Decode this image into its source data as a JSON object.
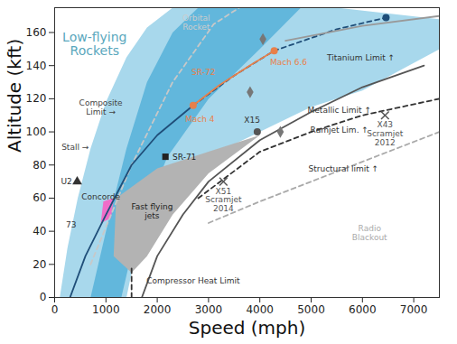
{
  "chart_data": {
    "type": "line",
    "xlabel": "Speed (mph)",
    "ylabel": "Altitude (kft)",
    "xlim": [
      0,
      7500
    ],
    "xticks": [
      0,
      1000,
      2000,
      3000,
      4000,
      5000,
      6000,
      7000
    ],
    "ylim": [
      0,
      175
    ],
    "yticks": [
      0,
      20,
      40,
      60,
      80,
      100,
      120,
      140,
      160
    ],
    "grid": false,
    "areas": [
      {
        "color": "#a8d8ec",
        "x": [
          100,
          250,
          450,
          700,
          1000,
          1400,
          1800,
          2300,
          5500,
          7500,
          7500,
          6000,
          5000,
          4000,
          3000,
          2300,
          1800,
          1500,
          1400
        ],
        "y": [
          0,
          30,
          60,
          90,
          118,
          145,
          163,
          175,
          175,
          168,
          150,
          125,
          115,
          100,
          85,
          65,
          40,
          15,
          0
        ]
      },
      {
        "color": "#62b7dc",
        "x": [
          700,
          1000,
          1400,
          1800,
          2300,
          2800,
          4800,
          4000,
          3000,
          2200,
          1600,
          1300
        ],
        "y": [
          0,
          40,
          90,
          130,
          160,
          175,
          175,
          150,
          120,
          85,
          40,
          0
        ]
      },
      {
        "color": "#b3b3b3",
        "x": [
          1150,
          1200,
          2000,
          3000,
          4000,
          3000,
          2300,
          1800,
          1500
        ],
        "y": [
          25,
          60,
          78,
          88,
          98,
          75,
          50,
          25,
          15
        ]
      },
      {
        "color": "#f06ec8",
        "x": [
          900,
          1100,
          1150,
          950
        ],
        "y": [
          45,
          48,
          60,
          58
        ]
      }
    ],
    "lines": [
      {
        "color": "#c8c8c8",
        "line_style": "dashed",
        "x": [
          700,
          1500,
          2300,
          3100,
          3600
        ],
        "y": [
          20,
          80,
          130,
          165,
          175
        ]
      },
      {
        "color": "#1f4e79",
        "line_style": "solid",
        "x": [
          300,
          600,
          1000,
          1500,
          2000,
          2700
        ],
        "y": [
          0,
          25,
          50,
          80,
          98,
          116
        ]
      },
      {
        "color": "#1f4e79",
        "line_style": "dashed",
        "x": [
          2700,
          3500,
          4280,
          5500,
          6460
        ],
        "y": [
          116,
          134,
          149,
          162,
          169
        ]
      },
      {
        "color": "#e8804a",
        "line_style": "solid",
        "x": [
          2700,
          3200,
          3800,
          4280
        ],
        "y": [
          116,
          128,
          140,
          149
        ]
      },
      {
        "color": "#555555",
        "line_style": "solid",
        "x": [
          1700,
          2000,
          2500,
          3000,
          4000,
          5000,
          6000,
          7200
        ],
        "y": [
          0,
          25,
          50,
          70,
          95,
          112,
          127,
          140
        ]
      },
      {
        "color": "#333333",
        "line_style": "dashed",
        "x": [
          2800,
          4000,
          5000,
          6000,
          7500
        ],
        "y": [
          60,
          88,
          100,
          110,
          120
        ]
      },
      {
        "color": "#aaaaaa",
        "line_style": "dashed",
        "x": [
          3000,
          4000,
          5000,
          6000,
          7500
        ],
        "y": [
          45,
          58,
          70,
          82,
          100
        ]
      },
      {
        "color": "#999999",
        "line_style": "solid",
        "x": [
          4500,
          6000,
          7500
        ],
        "y": [
          155,
          164,
          170
        ]
      },
      {
        "color": "#333333",
        "line_style": "dashed",
        "x": [
          1500,
          1500
        ],
        "y": [
          0,
          18
        ]
      }
    ],
    "points": [
      {
        "x": 2160,
        "y": 85,
        "marker": "square",
        "color": "#222222"
      },
      {
        "x": 440,
        "y": 70,
        "marker": "triangle",
        "color": "#333333"
      },
      {
        "x": 4060,
        "y": 156,
        "marker": "diamond",
        "color": "#777777"
      },
      {
        "x": 3810,
        "y": 124,
        "marker": "diamond",
        "color": "#777777"
      },
      {
        "x": 4400,
        "y": 100,
        "marker": "diamond",
        "color": "#777777"
      },
      {
        "x": 3950,
        "y": 100,
        "marker": "circle",
        "color": "#555555"
      },
      {
        "x": 6440,
        "y": 110,
        "marker": "times",
        "color": "#555555"
      },
      {
        "x": 3290,
        "y": 70,
        "marker": "times",
        "color": "#555555"
      },
      {
        "x": 6460,
        "y": 169,
        "marker": "circle",
        "color": "#1f4e79"
      },
      {
        "x": 2700,
        "y": 116,
        "marker": "circle",
        "color": "#e8804a"
      },
      {
        "x": 4280,
        "y": 149,
        "marker": "circle",
        "color": "#e8804a"
      }
    ],
    "annotations": [
      {
        "text": "Low-flying\nRockets",
        "x": 780,
        "y": 153,
        "color": "#5aa7bd"
      },
      {
        "text": "Orbital\nRocket",
        "x": 2760,
        "y": 166,
        "color": "#cccccc"
      },
      {
        "text": "Titanium Limit ↑",
        "x": 5970,
        "y": 145,
        "color": "#333333"
      },
      {
        "text": "Metallic Limit ↑",
        "x": 5550,
        "y": 113,
        "color": "#333333"
      },
      {
        "text": "Ramjet Lim. ↑",
        "x": 5550,
        "y": 101,
        "color": "#333333"
      },
      {
        "text": "Structural limit ↑",
        "x": 5630,
        "y": 78,
        "color": "#333333"
      },
      {
        "text": "Radio\nBlackout",
        "x": 6140,
        "y": 39,
        "color": "#aaaaaa"
      },
      {
        "text": "Composite\nLimit →",
        "x": 900,
        "y": 115,
        "color": "#444444"
      },
      {
        "text": "Stall →",
        "x": 400,
        "y": 91,
        "color": "#444444"
      },
      {
        "text": "U2",
        "x": 230,
        "y": 70,
        "color": "#333333"
      },
      {
        "text": "Concorde",
        "x": 900,
        "y": 61,
        "color": "#333333"
      },
      {
        "text": "Fast flying\njets",
        "x": 1900,
        "y": 52,
        "color": "#222222"
      },
      {
        "text": "73",
        "x": 320,
        "y": 44,
        "color": "#333333"
      },
      {
        "text": "SR-71",
        "x": 2530,
        "y": 85,
        "color": "#222222"
      },
      {
        "text": "X15",
        "x": 3850,
        "y": 107,
        "color": "#333333"
      },
      {
        "text": "Mach 4",
        "x": 2830,
        "y": 108,
        "color": "#e8804a"
      },
      {
        "text": "Mach 6.6",
        "x": 4560,
        "y": 142,
        "color": "#e8804a"
      },
      {
        "text": "SR-72",
        "x": 2900,
        "y": 136,
        "color": "#e8804a"
      },
      {
        "text": "X43\nScramjet\n2012",
        "x": 6440,
        "y": 99,
        "color": "#555555"
      },
      {
        "text": "X51\nScramjet\n2014",
        "x": 3290,
        "y": 59,
        "color": "#555555"
      },
      {
        "text": "Compressor Heat Limit",
        "x": 2700,
        "y": 10,
        "color": "#333333"
      }
    ]
  }
}
